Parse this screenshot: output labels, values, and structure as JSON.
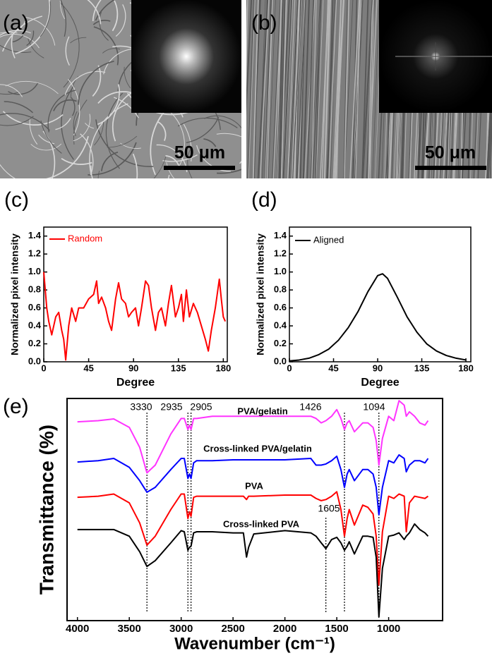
{
  "images": [
    {
      "label": "(a)",
      "scale_bar": "50 μm"
    },
    {
      "label": "(b)",
      "scale_bar": "50 μm"
    }
  ],
  "chart_data": [
    {
      "type": "line",
      "panel": "(c)",
      "x_label": "Degree",
      "y_label": "Normalized pixel intensity",
      "xlim": [
        0,
        184
      ],
      "xticks": [
        0,
        45,
        90,
        135,
        180
      ],
      "ylim": [
        0,
        1.5
      ],
      "yticks": [
        {
          "value": 0,
          "label": "0.0"
        },
        0.2,
        0.4,
        0.6,
        0.8,
        {
          "value": 1,
          "label": "1.0"
        },
        1.2,
        1.4
      ],
      "legend": "upper left",
      "x": [
        0,
        3,
        5,
        8,
        12,
        15,
        18,
        20,
        22,
        25,
        28,
        32,
        35,
        40,
        45,
        50,
        53,
        55,
        58,
        62,
        65,
        68,
        72,
        75,
        78,
        82,
        85,
        88,
        92,
        95,
        98,
        102,
        105,
        108,
        112,
        115,
        118,
        122,
        125,
        128,
        132,
        135,
        138,
        140,
        143,
        146,
        150,
        154,
        158,
        162,
        165,
        168,
        172,
        176,
        178,
        180,
        182
      ],
      "series": [
        {
          "name": "Random",
          "color": "#ff0000",
          "values": [
            1.0,
            0.6,
            0.45,
            0.3,
            0.5,
            0.55,
            0.35,
            0.25,
            0.02,
            0.4,
            0.6,
            0.45,
            0.6,
            0.6,
            0.7,
            0.75,
            0.9,
            0.65,
            0.72,
            0.6,
            0.45,
            0.35,
            0.7,
            0.88,
            0.7,
            0.65,
            0.5,
            0.55,
            0.6,
            0.4,
            0.6,
            0.9,
            0.85,
            0.6,
            0.35,
            0.55,
            0.6,
            0.4,
            0.65,
            0.85,
            0.5,
            0.6,
            0.75,
            0.45,
            0.8,
            0.5,
            0.65,
            0.55,
            0.4,
            0.25,
            0.12,
            0.35,
            0.6,
            0.92,
            0.7,
            0.5,
            0.45
          ]
        }
      ]
    },
    {
      "type": "line",
      "panel": "(d)",
      "x_label": "Degree",
      "y_label": "Normalized pixel intensity",
      "xlim": [
        0,
        185
      ],
      "xticks": [
        0,
        45,
        90,
        135,
        180
      ],
      "ylim": [
        0,
        1.5
      ],
      "yticks": [
        {
          "value": 0,
          "label": "0.0"
        },
        0.2,
        0.4,
        0.6,
        0.8,
        {
          "value": 1,
          "label": "1.0"
        },
        1.2,
        1.4
      ],
      "legend": "upper left",
      "x": [
        0,
        10,
        20,
        30,
        40,
        50,
        60,
        70,
        80,
        90,
        95,
        100,
        110,
        120,
        130,
        140,
        150,
        160,
        170,
        180
      ],
      "series": [
        {
          "name": "Aligned",
          "color": "#000000",
          "values": [
            0.01,
            0.02,
            0.04,
            0.08,
            0.14,
            0.24,
            0.38,
            0.56,
            0.78,
            0.96,
            0.98,
            0.93,
            0.72,
            0.5,
            0.33,
            0.2,
            0.12,
            0.07,
            0.04,
            0.02
          ]
        }
      ]
    },
    {
      "type": "line",
      "panel": "(e)",
      "x_label": "Wavenumber (cm⁻¹)",
      "y_label": "Transmittance (%)",
      "xlim": [
        4100,
        480
      ],
      "xticks": [
        4000,
        3500,
        3000,
        2500,
        2000,
        1500,
        1000
      ],
      "ylim": [
        0,
        100
      ],
      "x": [
        4000,
        3800,
        3650,
        3500,
        3400,
        3330,
        3250,
        3100,
        3000,
        2970,
        2935,
        2920,
        2905,
        2880,
        2850,
        2700,
        2500,
        2400,
        2370,
        2350,
        2300,
        2000,
        1750,
        1700,
        1650,
        1605,
        1550,
        1500,
        1460,
        1426,
        1400,
        1380,
        1330,
        1250,
        1200,
        1150,
        1120,
        1094,
        1060,
        1000,
        950,
        900,
        850,
        830,
        800,
        750,
        700,
        650,
        620
      ],
      "series": [
        {
          "name": "PVA/gelatin",
          "color": "#ff33ff",
          "values": [
            89.5,
            90,
            90.8,
            87,
            78,
            66.5,
            70,
            84,
            91,
            91,
            86,
            88,
            86,
            91,
            91,
            92,
            92,
            92,
            92,
            92,
            92,
            92,
            92,
            91,
            89,
            90,
            92,
            95,
            91,
            86,
            89,
            90,
            85,
            89,
            89,
            87,
            81,
            70,
            82,
            92,
            90,
            99,
            97,
            92,
            94,
            92,
            89,
            88,
            90
          ]
        },
        {
          "name": "Cross-linked PVA/gelatin",
          "color": "#0000ff",
          "values": [
            71.4,
            72,
            73,
            69,
            63,
            57.8,
            60,
            68,
            73,
            73,
            64,
            66,
            64,
            71,
            72,
            72,
            72.4,
            72.4,
            72.4,
            72.4,
            72.4,
            72.4,
            73,
            70,
            70,
            70.5,
            72,
            74,
            68,
            60,
            66,
            68,
            63,
            68,
            68,
            66,
            60,
            47.6,
            60,
            72,
            71,
            74.6,
            73,
            67,
            70,
            72,
            72,
            71,
            73
          ]
        },
        {
          "name": "PVA",
          "color": "#ff0000",
          "values": [
            55.5,
            56,
            57,
            53,
            44,
            34,
            38,
            50,
            57,
            57,
            46,
            49,
            47,
            55.5,
            56,
            56,
            56,
            56,
            54.5,
            56,
            56,
            56.5,
            56.5,
            55,
            54,
            54.5,
            56,
            58,
            50,
            38,
            46,
            50,
            43,
            52,
            51,
            48,
            38,
            16,
            40,
            56,
            55,
            57,
            56,
            40,
            53,
            56,
            55.5,
            55,
            56
          ]
        },
        {
          "name": "Cross-linked PVA",
          "color": "#000000",
          "values": [
            41,
            41,
            41,
            38,
            31,
            24.4,
            27,
            35,
            40.5,
            40,
            31.7,
            33,
            33.5,
            39.5,
            40,
            40,
            39.5,
            39.5,
            28.6,
            33,
            39,
            40.5,
            39.5,
            38,
            35,
            32.4,
            36.5,
            37.5,
            35,
            31.7,
            33.5,
            35.5,
            30,
            38,
            38,
            37.5,
            28.5,
            1.6,
            23.5,
            38,
            38.5,
            39.5,
            36.5,
            38,
            39.5,
            43.5,
            41,
            39.5,
            38
          ]
        }
      ],
      "annotations": [
        {
          "text": "3330",
          "x": 3330
        },
        {
          "text": "2935",
          "x": 2935
        },
        {
          "text": "2905",
          "x": 2905
        },
        {
          "text": "1426",
          "x": 1426
        },
        {
          "text": "1094",
          "x": 1094
        },
        {
          "text": "1605",
          "x": 1605
        }
      ]
    }
  ]
}
